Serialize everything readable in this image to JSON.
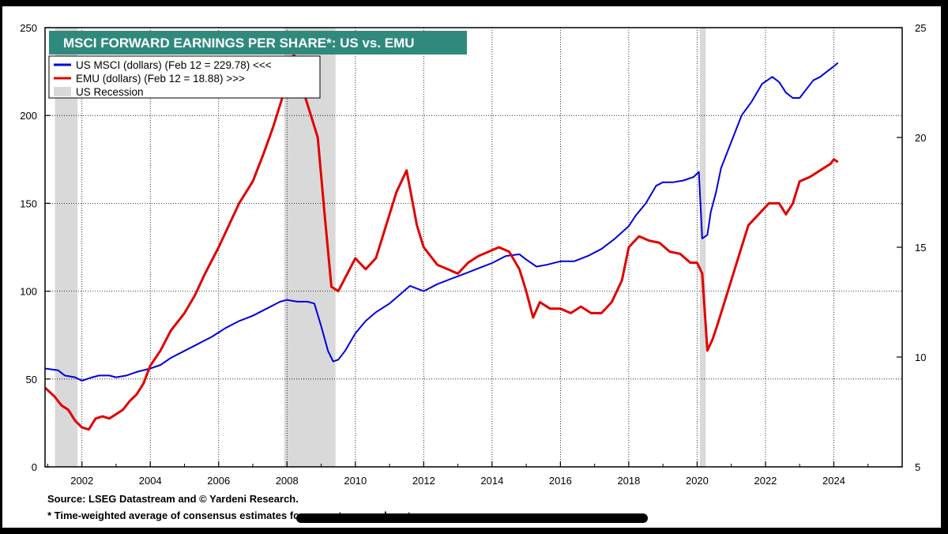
{
  "chart_data": {
    "type": "line",
    "title": "MSCI FORWARD EARNINGS PER SHARE*: US vs. EMU",
    "x_ticks": [
      "2002",
      "2004",
      "2006",
      "2008",
      "2010",
      "2012",
      "2014",
      "2016",
      "2018",
      "2020",
      "2022",
      "2024"
    ],
    "x_range": [
      2000.92,
      2026.0
    ],
    "y_left": {
      "ticks": [
        0,
        50,
        100,
        150,
        200,
        250
      ],
      "ylim": [
        0,
        250
      ]
    },
    "y_right": {
      "ticks": [
        5,
        10,
        15,
        20,
        25
      ],
      "ylim": [
        5,
        25
      ]
    },
    "legend": [
      {
        "label": "US MSCI (dollars) (Feb 12 = 229.78) <<<",
        "color": "#0000dd",
        "kind": "line"
      },
      {
        "label": "EMU (dollars) (Feb 12 = 18.88) >>>",
        "color": "#e00000",
        "kind": "line"
      },
      {
        "label": "US Recession",
        "color": "#d9d9d9",
        "kind": "box"
      }
    ],
    "recessions": [
      [
        2001.21,
        2001.87
      ],
      [
        2007.92,
        2009.42
      ],
      [
        2020.08,
        2020.25
      ]
    ],
    "series": [
      {
        "name": "US MSCI (dollars) (Feb 12 = 229.78) <<<",
        "axis": "left",
        "color": "#0000dd",
        "x": [
          2000.92,
          2001.3,
          2001.5,
          2001.8,
          2002.0,
          2002.3,
          2002.5,
          2002.8,
          2003.0,
          2003.3,
          2003.6,
          2004.0,
          2004.3,
          2004.6,
          2005.0,
          2005.4,
          2005.8,
          2006.2,
          2006.6,
          2007.0,
          2007.4,
          2007.8,
          2008.0,
          2008.3,
          2008.6,
          2008.8,
          2009.0,
          2009.2,
          2009.35,
          2009.5,
          2009.7,
          2010.0,
          2010.3,
          2010.6,
          2011.0,
          2011.3,
          2011.6,
          2012.0,
          2012.4,
          2012.8,
          2013.2,
          2013.6,
          2014.0,
          2014.4,
          2014.8,
          2015.0,
          2015.3,
          2015.6,
          2016.0,
          2016.4,
          2016.8,
          2017.2,
          2017.6,
          2018.0,
          2018.2,
          2018.5,
          2018.8,
          2019.0,
          2019.3,
          2019.6,
          2019.9,
          2020.05,
          2020.15,
          2020.3,
          2020.4,
          2020.55,
          2020.7,
          2021.0,
          2021.3,
          2021.6,
          2021.9,
          2022.2,
          2022.4,
          2022.6,
          2022.8,
          2023.0,
          2023.2,
          2023.4,
          2023.6,
          2023.8,
          2024.0,
          2024.12
        ],
        "y": [
          56,
          55,
          52,
          51,
          49,
          51,
          52,
          52,
          51,
          52,
          54,
          56,
          58,
          62,
          66,
          70,
          74,
          79,
          83,
          86,
          90,
          94,
          95,
          94,
          94,
          93,
          80,
          66,
          60,
          61,
          66,
          76,
          83,
          88,
          93,
          98,
          103,
          100,
          104,
          107,
          110,
          113,
          116,
          120,
          121,
          118,
          114,
          115,
          117,
          117,
          120,
          124,
          130,
          137,
          143,
          150,
          160,
          162,
          162,
          163,
          165,
          168,
          130,
          132,
          145,
          156,
          170,
          185,
          200,
          208,
          218,
          222,
          219,
          213,
          210,
          210,
          215,
          220,
          222,
          225,
          228,
          230
        ]
      },
      {
        "name": "EMU (dollars) (Feb 12 = 18.88) >>>",
        "axis": "right",
        "color": "#e00000",
        "x": [
          2000.92,
          2001.2,
          2001.4,
          2001.6,
          2001.8,
          2002.0,
          2002.2,
          2002.4,
          2002.6,
          2002.8,
          2003.0,
          2003.2,
          2003.4,
          2003.6,
          2003.8,
          2004.0,
          2004.3,
          2004.6,
          2005.0,
          2005.3,
          2005.6,
          2006.0,
          2006.3,
          2006.6,
          2007.0,
          2007.3,
          2007.6,
          2007.9,
          2008.2,
          2008.5,
          2008.7,
          2008.9,
          2009.1,
          2009.3,
          2009.5,
          2009.7,
          2010.0,
          2010.3,
          2010.6,
          2010.9,
          2011.2,
          2011.5,
          2011.8,
          2012.0,
          2012.4,
          2012.7,
          2013.0,
          2013.3,
          2013.6,
          2013.9,
          2014.2,
          2014.5,
          2014.8,
          2015.0,
          2015.2,
          2015.4,
          2015.7,
          2016.0,
          2016.3,
          2016.6,
          2016.9,
          2017.2,
          2017.5,
          2017.8,
          2018.0,
          2018.3,
          2018.6,
          2018.9,
          2019.2,
          2019.5,
          2019.8,
          2020.0,
          2020.15,
          2020.3,
          2020.45,
          2020.6,
          2020.9,
          2021.2,
          2021.5,
          2021.8,
          2022.1,
          2022.4,
          2022.6,
          2022.8,
          2023.0,
          2023.3,
          2023.6,
          2023.9,
          2024.0,
          2024.12
        ],
        "y": [
          8.6,
          8.2,
          7.8,
          7.6,
          7.1,
          6.8,
          6.7,
          7.2,
          7.3,
          7.2,
          7.4,
          7.6,
          8.0,
          8.3,
          8.8,
          9.6,
          10.3,
          11.2,
          12.0,
          12.8,
          13.8,
          15.0,
          16.0,
          17.0,
          18.0,
          19.2,
          20.5,
          22.0,
          23.8,
          22.0,
          21.0,
          20.0,
          16.5,
          13.2,
          13.0,
          13.6,
          14.5,
          14.0,
          14.5,
          16.0,
          17.5,
          18.5,
          16.0,
          15.0,
          14.2,
          14.0,
          13.8,
          14.3,
          14.6,
          14.8,
          15.0,
          14.8,
          14.0,
          13.0,
          11.8,
          12.5,
          12.2,
          12.2,
          12.0,
          12.3,
          12.0,
          12.0,
          12.5,
          13.5,
          15.0,
          15.5,
          15.3,
          15.2,
          14.8,
          14.7,
          14.3,
          14.3,
          13.8,
          10.3,
          10.8,
          11.5,
          13.0,
          14.5,
          16.0,
          16.5,
          17.0,
          17.0,
          16.5,
          17.0,
          18.0,
          18.2,
          18.5,
          18.8,
          19.0,
          18.88
        ]
      }
    ],
    "footnotes": [
      "Source: LSEG Datastream and © Yardeni Research.",
      "* Time-weighted average of consensus estimates for current year and next year."
    ]
  }
}
